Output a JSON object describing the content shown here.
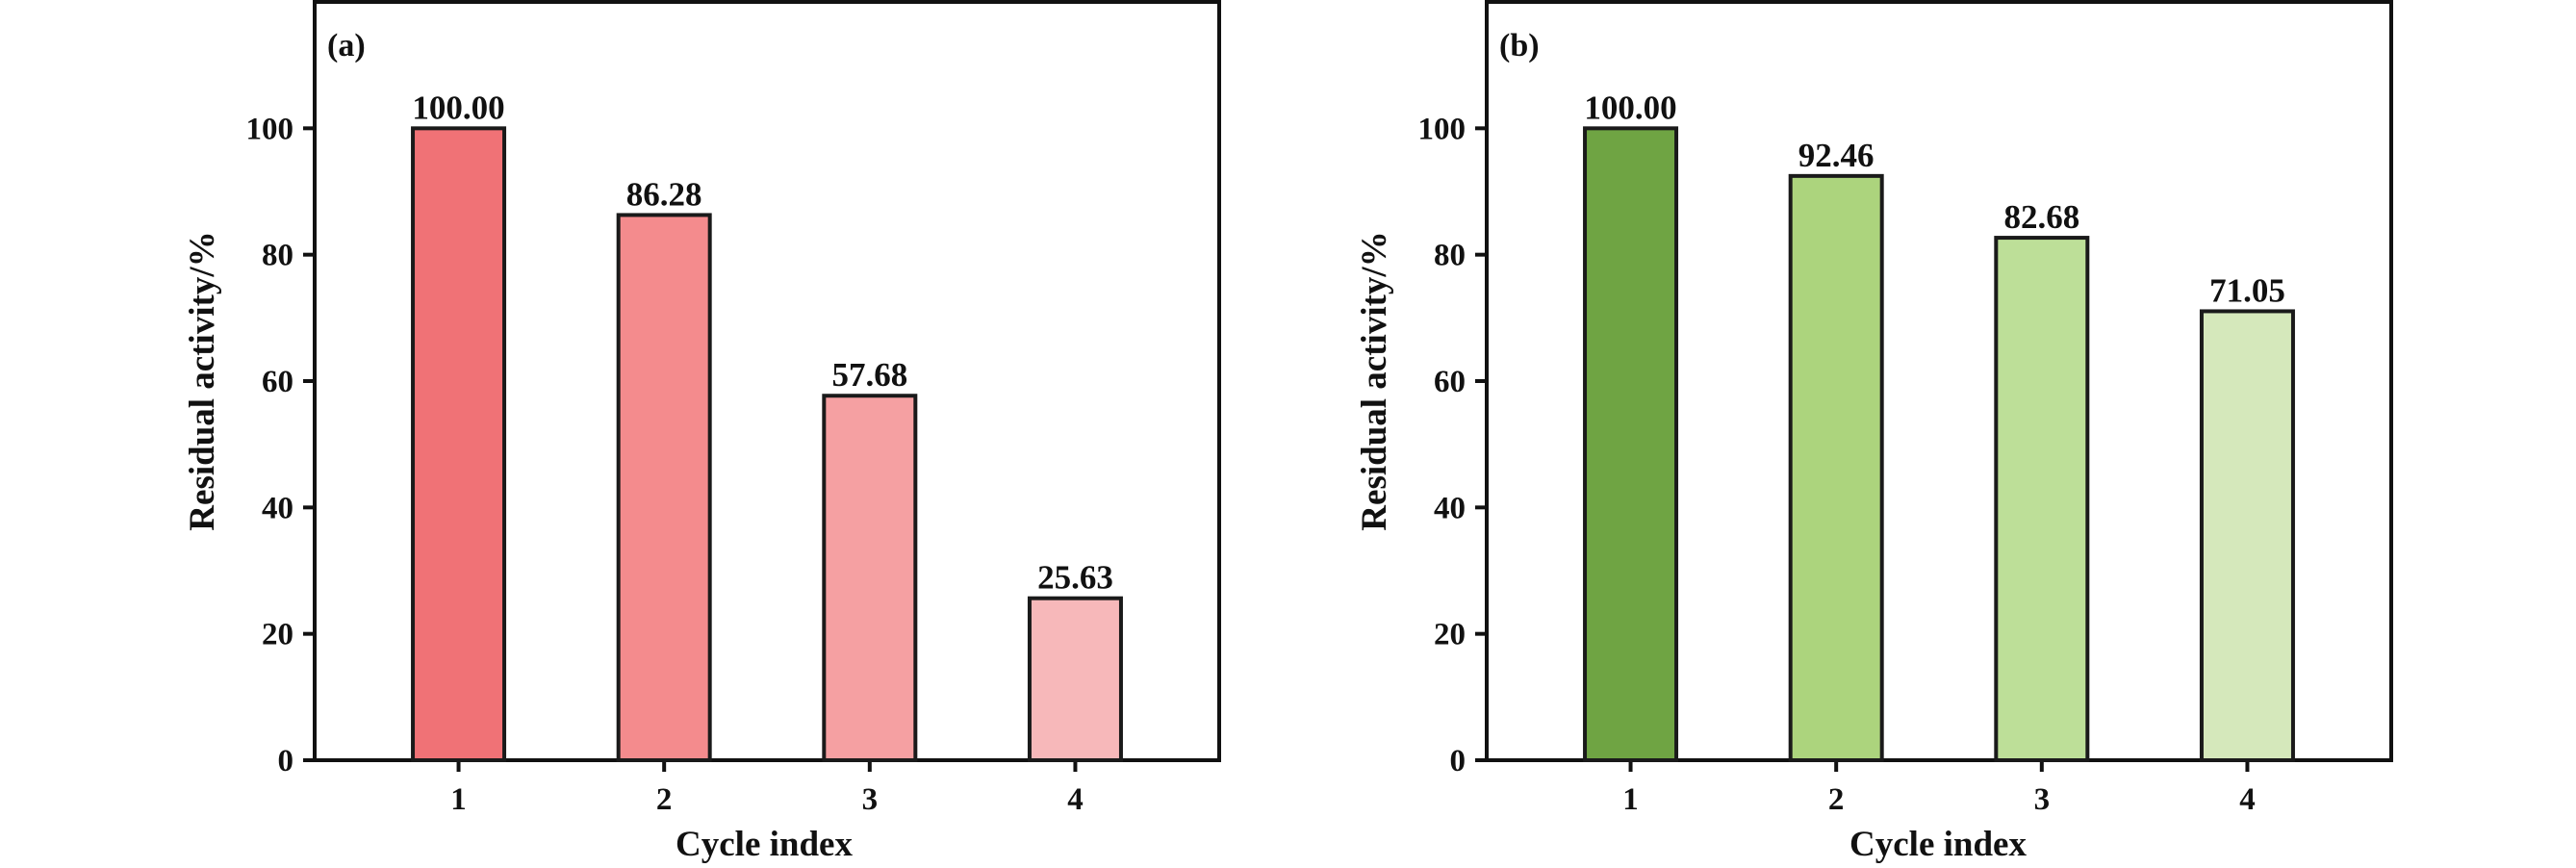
{
  "chart_data": [
    {
      "type": "bar",
      "panel_label": "(a)",
      "categories": [
        "1",
        "2",
        "3",
        "4"
      ],
      "values": [
        100.0,
        86.28,
        57.68,
        25.63
      ],
      "data_labels": [
        "100.00",
        "86.28",
        "57.68",
        "25.63"
      ],
      "bar_colors": [
        "#f07276",
        "#f48b8d",
        "#f5a0a2",
        "#f7b8ba"
      ],
      "xlabel": "Cycle index",
      "ylabel": "Residual activity/%",
      "ylim": [
        0,
        120
      ],
      "yticks": [
        0,
        20,
        40,
        60,
        80,
        100
      ],
      "grid": false
    },
    {
      "type": "bar",
      "panel_label": "(b)",
      "categories": [
        "1",
        "2",
        "3",
        "4"
      ],
      "values": [
        100.0,
        92.46,
        82.68,
        71.05
      ],
      "data_labels": [
        "100.00",
        "92.46",
        "82.68",
        "71.05"
      ],
      "bar_colors": [
        "#6fa443",
        "#acd47d",
        "#bddf98",
        "#d5e8bb"
      ],
      "xlabel": "Cycle index",
      "ylabel": "Residual activity/%",
      "ylim": [
        0,
        120
      ],
      "yticks": [
        0,
        20,
        40,
        60,
        80,
        100
      ],
      "grid": false
    }
  ]
}
